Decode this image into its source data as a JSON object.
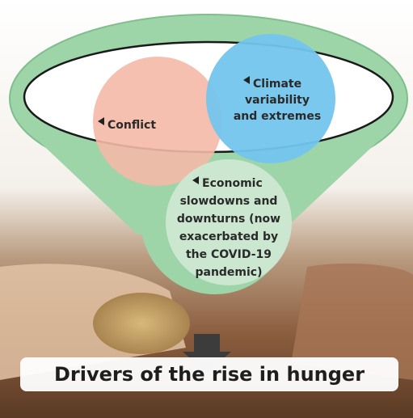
{
  "diagram": {
    "circles": [
      {
        "lines": [
          "Conflict"
        ]
      },
      {
        "lines": [
          "Climate",
          "variability",
          "and extremes"
        ]
      },
      {
        "lines": [
          "Economic",
          "slowdowns and",
          "downturns (now",
          "exacerbated by",
          "the COVID-19",
          "pandemic)"
        ]
      }
    ],
    "caption": "Drivers of the rise in hunger"
  }
}
